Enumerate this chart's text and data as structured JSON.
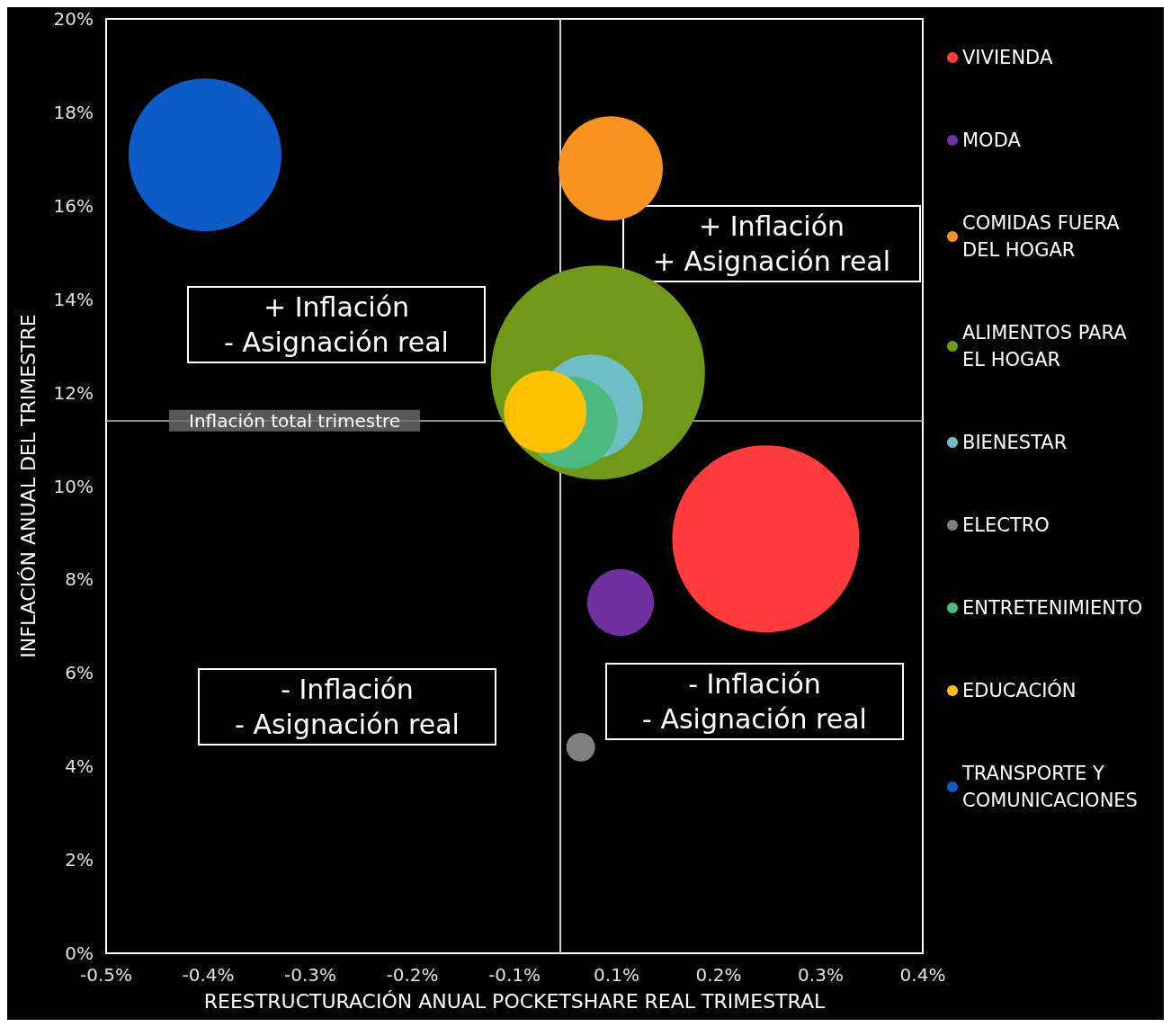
{
  "chart_data": {
    "type": "bubble",
    "xlabel": "REESTRUCTURACIÓN ANUAL POCKETSHARE REAL TRIMESTRAL",
    "ylabel": "INFLACIÓN ANUAL DEL TRIMESTRE",
    "xlim": [
      -0.5,
      0.4
    ],
    "xticks": [
      {
        "value": -0.5,
        "label": "-0.5%"
      },
      {
        "value": -0.3875,
        "label": "-0.4%"
      },
      {
        "value": -0.275,
        "label": "-0.3%"
      },
      {
        "value": -0.1625,
        "label": "-0.2%"
      },
      {
        "value": -0.05,
        "label": "-0.1%"
      },
      {
        "value": 0.0625,
        "label": "0.1%"
      },
      {
        "value": 0.175,
        "label": "0.2%"
      },
      {
        "value": 0.2875,
        "label": "0.3%"
      },
      {
        "value": 0.4,
        "label": "0.4%"
      }
    ],
    "ylim": [
      0,
      20
    ],
    "yticks": [
      {
        "value": 0,
        "label": "0%"
      },
      {
        "value": 2,
        "label": "2%"
      },
      {
        "value": 4,
        "label": "4%"
      },
      {
        "value": 6,
        "label": "6%"
      },
      {
        "value": 8,
        "label": "8%"
      },
      {
        "value": 10,
        "label": "10%"
      },
      {
        "value": 12,
        "label": "12%"
      },
      {
        "value": 14,
        "label": "14%"
      },
      {
        "value": 16,
        "label": "16%"
      },
      {
        "value": 18,
        "label": "18%"
      },
      {
        "value": 20,
        "label": "20%"
      }
    ],
    "grid": false,
    "legend": "right",
    "series": [
      {
        "name": "VIVIENDA",
        "color": "#ff3b3b",
        "x": [
          0.227
        ],
        "values": [
          8.87
        ],
        "sizes": [
          0.764
        ]
      },
      {
        "name": "MODA",
        "color": "#7030a0",
        "x": [
          0.067
        ],
        "values": [
          7.51
        ],
        "sizes": [
          0.097
        ]
      },
      {
        "name": "COMIDAS FUERA DEL HOGAR",
        "color": "#f7931e",
        "x": [
          0.056
        ],
        "values": [
          16.8
        ],
        "sizes": [
          0.238
        ]
      },
      {
        "name": "ALIMENTOS PARA EL HOGAR",
        "color": "#70991a",
        "x": [
          0.042
        ],
        "values": [
          12.43
        ],
        "sizes": [
          1
        ]
      },
      {
        "name": "BIENESTAR",
        "color": "#6fbfc9",
        "x": [
          0.034
        ],
        "values": [
          11.7
        ],
        "sizes": [
          0.238
        ]
      },
      {
        "name": "ELECTRO",
        "color": "#808080",
        "x": [
          0.023
        ],
        "values": [
          4.41
        ],
        "sizes": [
          0.018
        ]
      },
      {
        "name": "ENTRETENIMIENTO",
        "color": "#4dbb7f",
        "x": [
          0.013
        ],
        "values": [
          11.36
        ],
        "sizes": [
          0.184
        ]
      },
      {
        "name": "EDUCACIÓN",
        "color": "#ffc000",
        "x": [
          -0.016
        ],
        "values": [
          11.59
        ],
        "sizes": [
          0.149
        ]
      },
      {
        "name": "TRANSPORTE Y COMUNICACIONES",
        "color": "#0d5bc6",
        "x": [
          -0.391
        ],
        "values": [
          17.09
        ],
        "sizes": [
          0.51
        ]
      }
    ],
    "ref_lines": [
      {
        "axis": "x",
        "value": 0,
        "color": "#bfbfbf"
      },
      {
        "axis": "y",
        "value": 11.4,
        "label": "Inflación total trimestre",
        "color": "#bfbfbf"
      }
    ],
    "annotations": [
      "+ Inflación\n+ Asignación real",
      "+ Inflación\n- Asignación real",
      "- Inflación\n- Asignación real",
      "- Inflación\n- Asignación real"
    ]
  }
}
